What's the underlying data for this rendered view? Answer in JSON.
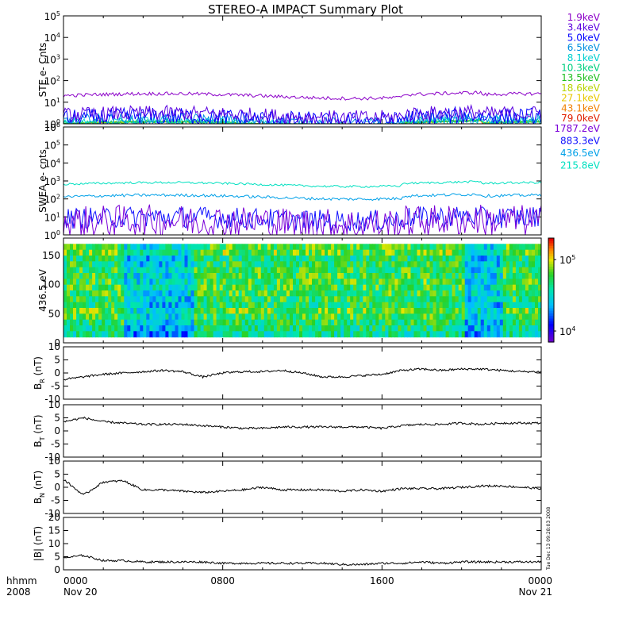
{
  "chart_data": {
    "title": "STEREO-A IMPACT Summary Plot",
    "type": "line",
    "x_axis": {
      "row1_label": "hhmm",
      "row2_label": "2008",
      "ticks": [
        {
          "time": "0000",
          "date": "Nov 20",
          "hours": 0
        },
        {
          "time": "0800",
          "date": "",
          "hours": 8
        },
        {
          "time": "1600",
          "date": "",
          "hours": 16
        },
        {
          "time": "0000",
          "date": "Nov 21",
          "hours": 24
        }
      ],
      "range_hours": [
        0,
        24
      ]
    },
    "panels": [
      {
        "id": "ste",
        "type": "line",
        "ylabel": "STE e- Cnts",
        "yscale": "log",
        "ylim": [
          1,
          100000
        ],
        "yticks": [
          {
            "base": "10",
            "exp": "0"
          },
          {
            "base": "10",
            "exp": "1"
          },
          {
            "base": "10",
            "exp": "2"
          },
          {
            "base": "10",
            "exp": "3"
          },
          {
            "base": "10",
            "exp": "4"
          },
          {
            "base": "10",
            "exp": "5"
          }
        ],
        "series": [
          {
            "name": "1.9keV",
            "color": "#8b00c8",
            "level": 20,
            "noise": 0.08
          },
          {
            "name": "3.4keV",
            "color": "#5a00e0",
            "level": 2.5,
            "noise": 0.35
          },
          {
            "name": "5.0keV",
            "color": "#0000ff",
            "level": 1.8,
            "noise": 0.4
          },
          {
            "name": "6.5keV",
            "color": "#0090e0",
            "level": 1.3,
            "noise": 0.3
          },
          {
            "name": "8.1keV",
            "color": "#00d0d0",
            "level": 1.1,
            "noise": 0.2
          },
          {
            "name": "10.3keV",
            "color": "#00d080",
            "level": 1.05,
            "noise": 0.1
          },
          {
            "name": "13.5keV",
            "color": "#20c020",
            "level": 1.0,
            "noise": 0.05
          },
          {
            "name": "18.6keV",
            "color": "#b8d400",
            "level": 1.0,
            "noise": 0.03
          },
          {
            "name": "27.1keV",
            "color": "#e8c800",
            "level": 1.0,
            "noise": 0.02
          },
          {
            "name": "43.1keV",
            "color": "#f08000",
            "level": 1.0,
            "noise": 0.02
          },
          {
            "name": "79.0keV",
            "color": "#e02000",
            "level": 1.0,
            "noise": 0.02
          }
        ]
      },
      {
        "id": "swea",
        "type": "line",
        "ylabel": "SWEA e- cnts",
        "yscale": "log",
        "ylim": [
          1,
          1000000
        ],
        "yticks": [
          {
            "base": "10",
            "exp": "0"
          },
          {
            "base": "10",
            "exp": "1"
          },
          {
            "base": "10",
            "exp": "2"
          },
          {
            "base": "10",
            "exp": "3"
          },
          {
            "base": "10",
            "exp": "4"
          },
          {
            "base": "10",
            "exp": "5"
          },
          {
            "base": "10",
            "exp": "6"
          }
        ],
        "series": [
          {
            "name": "1787.2eV",
            "color": "#7a00d8",
            "level": 5,
            "noise": 0.9
          },
          {
            "name": "883.3eV",
            "color": "#1010ff",
            "level": 8,
            "noise": 0.6
          },
          {
            "name": "436.5eV",
            "color": "#00a0e8",
            "level": 130,
            "noise": 0.08
          },
          {
            "name": "215.8eV",
            "color": "#00e0c0",
            "level": 650,
            "noise": 0.06
          }
        ]
      },
      {
        "id": "spectrogram",
        "type": "heatmap",
        "ylabel": "436.5 eV",
        "ylim": [
          0,
          180
        ],
        "yticks": [
          "0",
          "50",
          "100",
          "150"
        ],
        "colorbar": {
          "scale": "log",
          "range": [
            7000,
            200000
          ],
          "ticks": [
            {
              "base": "10",
              "exp": "4",
              "value": 10000
            },
            {
              "base": "10",
              "exp": "5",
              "value": 100000
            }
          ]
        }
      },
      {
        "id": "br",
        "type": "line",
        "ylabel_main": "B",
        "ylabel_sub": "R",
        "ylabel_unit": "(nT)",
        "ylim": [
          -10,
          10
        ],
        "yticks": [
          "-10",
          "-5",
          "0",
          "5",
          "10"
        ],
        "points_hours": [
          0,
          1,
          2,
          3,
          4,
          5,
          6,
          7,
          8,
          9,
          10,
          11,
          12,
          13,
          14,
          15,
          16,
          17,
          18,
          19,
          20,
          21,
          22,
          23,
          24
        ],
        "values": [
          -2.5,
          -1.5,
          -0.5,
          0,
          0.5,
          1,
          0.5,
          -1.5,
          0,
          0.5,
          0.5,
          1,
          0,
          -1.5,
          -1.5,
          -1,
          -0.5,
          1,
          1.5,
          1,
          1.5,
          1.5,
          1,
          0.5,
          0.5
        ]
      },
      {
        "id": "bt",
        "type": "line",
        "ylabel_main": "B",
        "ylabel_sub": "T",
        "ylabel_unit": "(nT)",
        "ylim": [
          -10,
          10
        ],
        "yticks": [
          "-10",
          "-5",
          "0",
          "5",
          "10"
        ],
        "points_hours": [
          0,
          1,
          2,
          3,
          4,
          5,
          6,
          7,
          8,
          9,
          10,
          11,
          12,
          13,
          14,
          15,
          16,
          17,
          18,
          19,
          20,
          21,
          22,
          23,
          24
        ],
        "values": [
          3.5,
          5,
          3.5,
          3,
          2.5,
          2.5,
          2.5,
          2,
          1.5,
          1,
          1,
          1.5,
          1.5,
          1.5,
          1.5,
          1.5,
          1,
          2,
          2.5,
          2.5,
          3,
          2.5,
          3,
          3,
          3
        ]
      },
      {
        "id": "bn",
        "type": "line",
        "ylabel_main": "B",
        "ylabel_sub": "N",
        "ylabel_unit": "(nT)",
        "ylim": [
          -10,
          10
        ],
        "yticks": [
          "-10",
          "-5",
          "0",
          "5",
          "10"
        ],
        "points_hours": [
          0,
          1,
          2,
          3,
          4,
          5,
          6,
          7,
          8,
          9,
          10,
          11,
          12,
          13,
          14,
          15,
          16,
          17,
          18,
          19,
          20,
          21,
          22,
          23,
          24
        ],
        "values": [
          3,
          -3,
          2,
          2.5,
          -1,
          -1,
          -1.5,
          -2,
          -1.5,
          -1,
          0,
          -1,
          -1,
          -1,
          -1.5,
          -1,
          -1.5,
          -0.5,
          -0.5,
          -0.5,
          0,
          0.5,
          0.5,
          0,
          -0.5
        ]
      },
      {
        "id": "bmag",
        "type": "line",
        "ylabel_main": "|B|",
        "ylabel_sub": "",
        "ylabel_unit": "(nT)",
        "ylim": [
          0,
          20
        ],
        "yticks": [
          "0",
          "5",
          "10",
          "15",
          "20"
        ],
        "points_hours": [
          0,
          1,
          2,
          3,
          4,
          5,
          6,
          7,
          8,
          9,
          10,
          11,
          12,
          13,
          14,
          15,
          16,
          17,
          18,
          19,
          20,
          21,
          22,
          23,
          24
        ],
        "values": [
          4.5,
          5.5,
          3.5,
          3.5,
          3,
          3,
          3,
          3,
          2.5,
          2.5,
          2.5,
          2.5,
          2.5,
          2.5,
          2,
          2,
          2.5,
          2.5,
          3,
          2.5,
          3,
          3,
          3,
          3,
          3
        ]
      }
    ],
    "generation_stamp": "Tue Dec 13 09:28:03 2008"
  }
}
